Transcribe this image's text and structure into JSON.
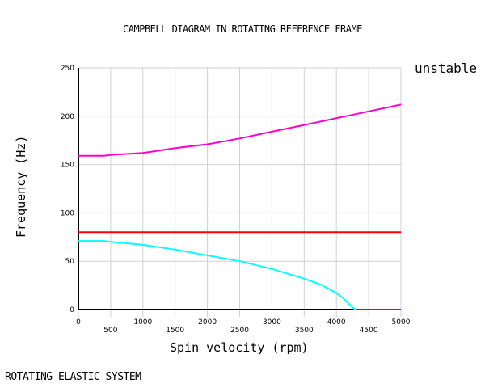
{
  "chart_data": {
    "type": "line",
    "title": "CAMPBELL DIAGRAM IN ROTATING REFERENCE FRAME",
    "xlabel": "Spin velocity (rpm)",
    "ylabel": "Frequency (Hz)",
    "xlim": [
      0,
      5000
    ],
    "ylim": [
      0,
      250
    ],
    "xticks": [
      "0",
      "500",
      "1000",
      "1500",
      "2000",
      "2500",
      "3000",
      "3500",
      "4000",
      "4500",
      "5000"
    ],
    "yticks": [
      "0",
      "50",
      "100",
      "150",
      "200",
      "250"
    ],
    "grid": true,
    "annotation": "unstable",
    "series": [
      {
        "color": "#ff00cc",
        "x": [
          0,
          400,
          500,
          1000,
          1500,
          2000,
          2500,
          3000,
          3500,
          4000,
          4500,
          5000
        ],
        "y": [
          159,
          159,
          160,
          162,
          167,
          171,
          177,
          184,
          191,
          198,
          205,
          212
        ]
      },
      {
        "color": "#ff0000",
        "x": [
          0,
          5000
        ],
        "y": [
          80,
          80
        ]
      },
      {
        "color": "#00ffff",
        "x": [
          0,
          400,
          500,
          1000,
          1500,
          2000,
          2500,
          3000,
          3500,
          3750,
          4000,
          4100,
          4250,
          4300
        ],
        "y": [
          71,
          71,
          70,
          67,
          62,
          56,
          50,
          42,
          32,
          26,
          17,
          12,
          2,
          0
        ]
      },
      {
        "color": "#9900ff",
        "x": [
          4300,
          5000
        ],
        "y": [
          0,
          0
        ]
      }
    ]
  },
  "footer": "ROTATING ELASTIC SYSTEM"
}
